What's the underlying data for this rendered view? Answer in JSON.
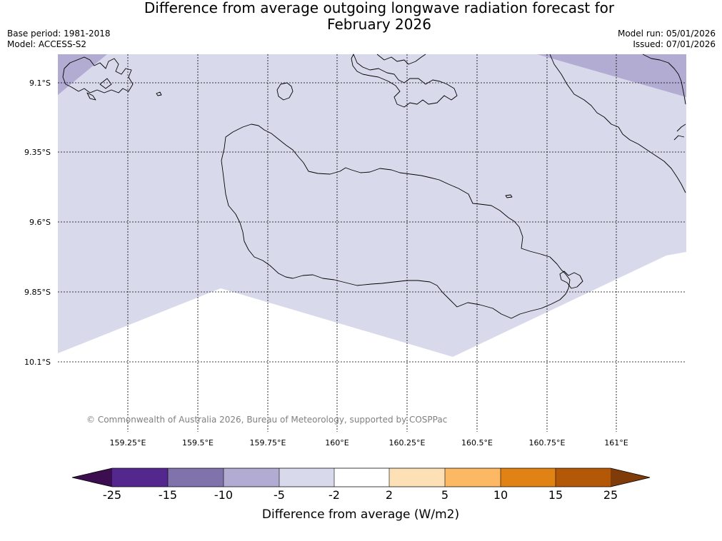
{
  "header": {
    "title_line1": "Difference from average outgoing longwave radiation forecast for",
    "title_line2": "February 2026",
    "base_period": "Base period: 1981-2018",
    "model": "Model: ACCESS-S2",
    "model_run": "Model run: 05/01/2026",
    "issued": "Issued: 07/01/2026"
  },
  "map": {
    "lat_labels": [
      "9.1°S",
      "9.35°S",
      "9.6°S",
      "9.85°S",
      "10.1°S"
    ],
    "lon_labels": [
      "159.25°E",
      "159.5°E",
      "159.75°E",
      "160°E",
      "160.25°E",
      "160.5°E",
      "160.75°E",
      "161°E"
    ],
    "copyright": "© Commonwealth of Australia 2026, Bureau of Meteorology, supported by COSPPac"
  },
  "colorbar": {
    "title": "Difference from average (W/m2)",
    "tick_labels": [
      "-25",
      "-15",
      "-10",
      "-5",
      "-2",
      "2",
      "5",
      "10",
      "15",
      "25"
    ],
    "colors": [
      "#3b0f4f",
      "#54278f",
      "#8073ac",
      "#b2abd2",
      "#d8daeb",
      "#ffffff",
      "#fee0b6",
      "#fdb863",
      "#e08214",
      "#b35806",
      "#7f3b08"
    ],
    "map_fill_main": "#d8daeb",
    "map_fill_corner": "#b2abd2"
  }
}
